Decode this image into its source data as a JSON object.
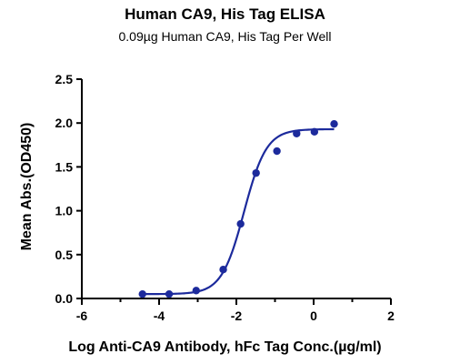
{
  "chart_data": {
    "type": "scatter",
    "title": "Human CA9, His Tag ELISA",
    "subtitle": "0.09µg Human CA9, His Tag Per Well",
    "xlabel": "Log Anti-CA9 Antibody, hFc Tag Conc.(µg/ml)",
    "ylabel": "Mean Abs.(OD450)",
    "xlim": [
      -6,
      2
    ],
    "ylim": [
      0,
      2.5
    ],
    "xticks": [
      -6,
      -4,
      -2,
      0,
      2
    ],
    "yticks": [
      0.0,
      0.5,
      1.0,
      1.5,
      2.0,
      2.5
    ],
    "xtick_labels": [
      "-6",
      "-4",
      "-2",
      "0",
      "2"
    ],
    "ytick_labels": [
      "0.0",
      "0.5",
      "1.0",
      "1.5",
      "2.0",
      "2.5"
    ],
    "grid": false,
    "series": [
      {
        "color": "#1c2a9c",
        "points": [
          {
            "x": -4.43,
            "y": 0.05
          },
          {
            "x": -3.74,
            "y": 0.05
          },
          {
            "x": -3.04,
            "y": 0.09
          },
          {
            "x": -2.34,
            "y": 0.33
          },
          {
            "x": -1.89,
            "y": 0.85
          },
          {
            "x": -1.49,
            "y": 1.43
          },
          {
            "x": -0.95,
            "y": 1.68
          },
          {
            "x": -0.44,
            "y": 1.88
          },
          {
            "x": 0.02,
            "y": 1.9
          },
          {
            "x": 0.53,
            "y": 1.99
          }
        ],
        "fit": {
          "model": "4PL",
          "bottom": 0.05,
          "top": 1.93,
          "log_ec50": -1.8,
          "hill_slope": 1.5,
          "x_range": [
            -4.43,
            0.53
          ]
        }
      }
    ]
  }
}
